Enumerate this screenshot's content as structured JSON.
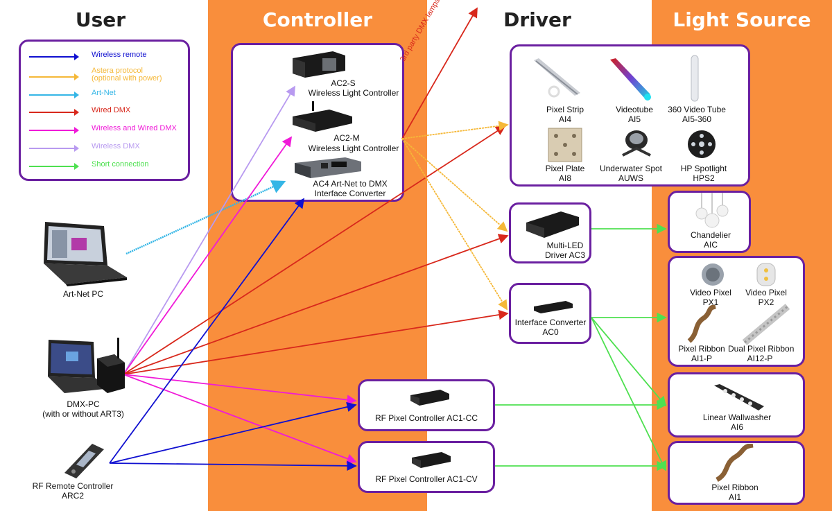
{
  "columns": {
    "user": "User",
    "controller": "Controller",
    "driver": "Driver",
    "light_source": "Light Source"
  },
  "legend": [
    {
      "label": "Wireless remote",
      "color": "#1010d0"
    },
    {
      "label": "Astera protocol",
      "sub": "(optional with power)",
      "color": "#f5b838"
    },
    {
      "label": "Art-Net",
      "color": "#35b6e6"
    },
    {
      "label": "Wired DMX",
      "color": "#d8281c"
    },
    {
      "label": "Wireless and Wired DMX",
      "color": "#f01ad8"
    },
    {
      "label": "Wireless DMX",
      "color": "#b89af0"
    },
    {
      "label": "Short connection",
      "color": "#4ee050"
    }
  ],
  "users": {
    "artnet_pc": "Art-Net PC",
    "dmx_pc": "DMX-PC",
    "dmx_pc_sub": "(with or without ART3)",
    "remote": "RF Remote Controller",
    "remote_sub": "ARC2"
  },
  "controllers": {
    "ac2s_a": "AC2-S",
    "ac2s_b": "Wireless Light Controller",
    "ac2m_a": "AC2-M",
    "ac2m_b": "Wireless Light Controller",
    "ac4_a": "AC4 Art-Net to DMX",
    "ac4_b": "Interface Converter",
    "ac1cc": "RF Pixel Controller AC1-CC",
    "ac1cv": "RF Pixel Controller AC1-CV",
    "third_party": "3rd party DMX lamps"
  },
  "drivers": {
    "strip_a": "Pixel Strip",
    "strip_b": "AI4",
    "videotube_a": "Videotube",
    "videotube_b": "AI5",
    "tube360_a": "360 Video Tube",
    "tube360_b": "AI5-360",
    "plate_a": "Pixel Plate",
    "plate_b": "AI8",
    "uw_a": "Underwater Spot",
    "uw_b": "AUWS",
    "hps_a": "HP Spotlight",
    "hps_b": "HPS2",
    "ac3_a": "Multi-LED",
    "ac3_b": "Driver AC3",
    "ac0_a": "Interface Converter",
    "ac0_b": "AC0"
  },
  "lights": {
    "chand_a": "Chandelier",
    "chand_b": "AIC",
    "px1_a": "Video Pixel",
    "px1_b": "PX1",
    "px2_a": "Video Pixel",
    "px2_b": "PX2",
    "rib_a": "Pixel Ribbon",
    "rib_b": "AI1-P",
    "drib_a": "Dual Pixel Ribbon",
    "drib_b": "AI12-P",
    "wash_a": "Linear Wallwasher",
    "wash_b": "AI6",
    "rib2_a": "Pixel Ribbon",
    "rib2_b": "AI1"
  }
}
